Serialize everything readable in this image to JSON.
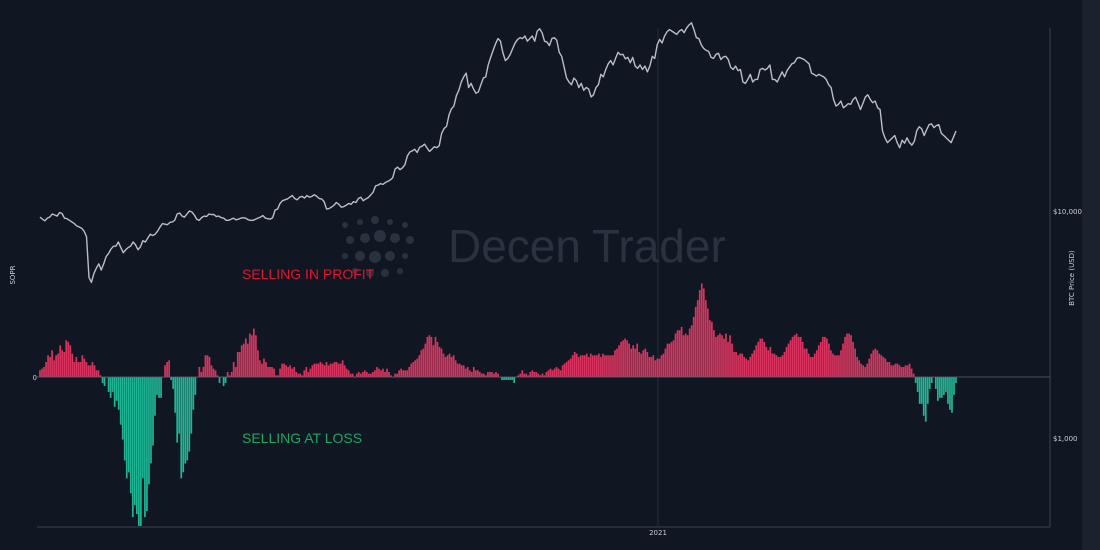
{
  "colors": {
    "background": "#111722",
    "profit_bar": "#d8345f",
    "loss_bar": "#1fb595",
    "price_line": "#b9bec7",
    "profit_text": "#e8102a",
    "loss_text": "#17a862",
    "watermark": "#2a3240",
    "axis_text": "#c9ced6",
    "zero_line": "#5c6370"
  },
  "watermark": {
    "text_part1": "Decen",
    "text_part2": "Trader",
    "logo": "dot-grid-logo"
  },
  "annotations": {
    "profit": "SELLING IN PROFIT",
    "loss": "SELLING AT LOSS"
  },
  "chart_data": {
    "type": "bar",
    "title": "",
    "xlabel": "",
    "ylabel": "SOPR",
    "y2label": "BTC Price (USD)",
    "x_ticks": [
      "2021"
    ],
    "y_ticks": [
      "0"
    ],
    "y2_ticks": [
      "$10,000",
      "$1,000"
    ],
    "y2_scale": "log",
    "grid": false,
    "series": [
      {
        "name": "SOPR",
        "chart_type": "bar",
        "values": [
          0.04,
          0.05,
          0.06,
          0.09,
          0.13,
          0.12,
          0.16,
          0.1,
          0.13,
          0.14,
          0.19,
          0.16,
          0.15,
          0.22,
          0.21,
          0.19,
          0.14,
          0.09,
          0.12,
          0.09,
          0.09,
          0.13,
          0.11,
          0.09,
          0.07,
          0.07,
          0.09,
          0.07,
          0.04,
          0.04,
          0.01,
          -0.02,
          -0.03,
          0.0,
          -0.05,
          -0.07,
          -0.05,
          -0.1,
          -0.08,
          -0.11,
          -0.16,
          -0.21,
          -0.28,
          -0.34,
          -0.32,
          -0.39,
          -0.47,
          -0.43,
          -0.46,
          -0.5,
          -0.5,
          -0.34,
          -0.47,
          -0.45,
          -0.36,
          -0.29,
          -0.23,
          -0.13,
          -0.06,
          -0.07,
          -0.07,
          0.0,
          0.07,
          0.09,
          0.1,
          -0.01,
          -0.04,
          -0.12,
          -0.22,
          -0.19,
          -0.34,
          -0.32,
          -0.29,
          -0.28,
          -0.25,
          -0.19,
          -0.11,
          -0.06,
          0.0,
          0.06,
          0.03,
          0.06,
          0.13,
          0.13,
          0.12,
          0.07,
          0.05,
          0.04,
          0.01,
          -0.02,
          -0.0,
          -0.03,
          -0.02,
          0.03,
          0.01,
          0.03,
          0.09,
          0.06,
          0.15,
          0.15,
          0.19,
          0.2,
          0.23,
          0.2,
          0.26,
          0.25,
          0.29,
          0.25,
          0.16,
          0.1,
          0.08,
          0.11,
          0.09,
          0.06,
          0.06,
          0.06,
          0.05,
          0.01,
          0.01,
          0.05,
          0.08,
          0.08,
          0.07,
          0.06,
          0.07,
          0.05,
          0.06,
          0.03,
          0.02,
          0.02,
          0.01,
          0.04,
          0.06,
          0.03,
          0.05,
          0.07,
          0.08,
          0.08,
          0.08,
          0.09,
          0.08,
          0.07,
          0.09,
          0.07,
          0.08,
          0.08,
          0.09,
          0.09,
          0.08,
          0.08,
          0.1,
          0.07,
          0.05,
          0.04,
          0.02,
          0.02,
          -0.0,
          0.02,
          0.03,
          0.02,
          0.03,
          0.04,
          0.03,
          0.02,
          0.02,
          0.03,
          0.04,
          0.06,
          0.05,
          0.04,
          0.05,
          0.03,
          0.05,
          0.03,
          0.01,
          0.0,
          0.02,
          0.02,
          0.04,
          0.05,
          0.04,
          0.04,
          0.04,
          0.06,
          0.08,
          0.09,
          0.1,
          0.11,
          0.13,
          0.16,
          0.17,
          0.2,
          0.24,
          0.25,
          0.24,
          0.19,
          0.24,
          0.21,
          0.18,
          0.17,
          0.14,
          0.12,
          0.13,
          0.14,
          0.12,
          0.13,
          0.1,
          0.08,
          0.08,
          0.07,
          0.07,
          0.05,
          0.06,
          0.04,
          0.03,
          0.06,
          0.04,
          0.04,
          0.03,
          0.02,
          0.02,
          0.01,
          0.03,
          0.03,
          0.03,
          0.02,
          0.03,
          0.02,
          -0.0,
          -0.01,
          -0.01,
          -0.01,
          -0.01,
          -0.01,
          -0.01,
          -0.02,
          0.0,
          0.01,
          0.02,
          0.04,
          0.02,
          0.02,
          0.01,
          0.03,
          0.04,
          0.03,
          0.03,
          0.02,
          0.01,
          0.02,
          0.01,
          0.03,
          0.04,
          0.05,
          0.04,
          0.05,
          0.06,
          0.05,
          0.04,
          0.07,
          0.08,
          0.09,
          0.1,
          0.11,
          0.13,
          0.15,
          0.14,
          0.12,
          0.13,
          0.13,
          0.13,
          0.14,
          0.12,
          0.14,
          0.13,
          0.13,
          0.13,
          0.14,
          0.12,
          0.14,
          0.13,
          0.13,
          0.13,
          0.13,
          0.13,
          0.16,
          0.17,
          0.19,
          0.21,
          0.22,
          0.23,
          0.22,
          0.2,
          0.17,
          0.19,
          0.17,
          0.2,
          0.15,
          0.14,
          0.16,
          0.17,
          0.15,
          0.12,
          0.12,
          0.13,
          0.1,
          0.11,
          0.11,
          0.13,
          0.14,
          0.17,
          0.2,
          0.2,
          0.21,
          0.22,
          0.26,
          0.28,
          0.28,
          0.3,
          0.25,
          0.26,
          0.25,
          0.29,
          0.31,
          0.36,
          0.42,
          0.46,
          0.52,
          0.56,
          0.53,
          0.46,
          0.41,
          0.34,
          0.33,
          0.28,
          0.24,
          0.25,
          0.26,
          0.25,
          0.23,
          0.26,
          0.21,
          0.25,
          0.2,
          0.15,
          0.15,
          0.13,
          0.14,
          0.14,
          0.12,
          0.11,
          0.1,
          0.12,
          0.14,
          0.16,
          0.19,
          0.21,
          0.23,
          0.23,
          0.21,
          0.18,
          0.16,
          0.18,
          0.14,
          0.14,
          0.13,
          0.12,
          0.12,
          0.13,
          0.15,
          0.18,
          0.2,
          0.22,
          0.24,
          0.25,
          0.26,
          0.24,
          0.24,
          0.21,
          0.17,
          0.17,
          0.14,
          0.12,
          0.12,
          0.14,
          0.16,
          0.19,
          0.21,
          0.24,
          0.24,
          0.23,
          0.2,
          0.16,
          0.14,
          0.13,
          0.13,
          0.13,
          0.16,
          0.2,
          0.24,
          0.26,
          0.26,
          0.25,
          0.21,
          0.17,
          0.12,
          0.1,
          0.08,
          0.07,
          0.06,
          0.08,
          0.11,
          0.14,
          0.16,
          0.17,
          0.16,
          0.14,
          0.13,
          0.12,
          0.11,
          0.09,
          0.09,
          0.07,
          0.07,
          0.08,
          0.08,
          0.07,
          0.06,
          0.06,
          0.07,
          0.07,
          0.08,
          0.05,
          0.02,
          -0.02,
          -0.05,
          -0.09,
          -0.09,
          -0.13,
          -0.15,
          -0.09,
          -0.04,
          -0.02,
          -0.0,
          -0.04,
          -0.08,
          -0.07,
          -0.07,
          -0.06,
          -0.05,
          -0.09,
          -0.11,
          -0.12,
          -0.06,
          -0.02
        ]
      },
      {
        "name": "BTC Price (USD)",
        "chart_type": "line",
        "values": [
          9400,
          9200,
          9050,
          9300,
          9400,
          9700,
          9600,
          9500,
          9850,
          9750,
          9300,
          9250,
          9100,
          8950,
          8800,
          8600,
          8500,
          8400,
          8150,
          7700,
          5100,
          4850,
          5300,
          5600,
          5850,
          5500,
          5850,
          6300,
          6500,
          6800,
          7000,
          7000,
          7300,
          6900,
          6550,
          6750,
          6900,
          7000,
          7300,
          7100,
          6750,
          6950,
          7400,
          7300,
          7600,
          7900,
          7800,
          7900,
          8150,
          8500,
          8800,
          8750,
          8700,
          8900,
          8950,
          9100,
          9700,
          9800,
          9500,
          9400,
          9700,
          10000,
          9900,
          9600,
          9200,
          9100,
          9350,
          9500,
          9450,
          9700,
          9650,
          9650,
          9450,
          9500,
          9350,
          9300,
          9100,
          9100,
          9200,
          9300,
          9150,
          9200,
          9300,
          9350,
          9300,
          9150,
          9100,
          9100,
          9200,
          9300,
          9400,
          9550,
          9300,
          9250,
          9200,
          9350,
          10100,
          10200,
          10800,
          11100,
          11200,
          11300,
          11500,
          11700,
          11350,
          11200,
          11500,
          11600,
          11400,
          11700,
          11500,
          11600,
          11800,
          11600,
          11350,
          11300,
          11000,
          10200,
          10250,
          10400,
          10600,
          10900,
          10700,
          10400,
          10450,
          10600,
          10800,
          10700,
          11000,
          10900,
          11350,
          11500,
          11100,
          11300,
          11450,
          11750,
          12100,
          12900,
          13000,
          13200,
          13100,
          13350,
          13500,
          13700,
          14000,
          15300,
          15600,
          15200,
          15500,
          16000,
          17500,
          18200,
          18400,
          18700,
          18100,
          19100,
          19300,
          19700,
          19000,
          18300,
          18700,
          19200,
          19000,
          19400,
          22000,
          23100,
          23600,
          26500,
          28200,
          29000,
          32200,
          34000,
          37000,
          39000,
          40500,
          35000,
          36500,
          34500,
          33000,
          33500,
          36000,
          38500,
          39000,
          44000,
          47500,
          51000,
          54500,
          57500,
          56000,
          49800,
          46000,
          47000,
          49000,
          52000,
          55000,
          57000,
          58000,
          57500,
          59000,
          56000,
          57500,
          59000,
          56000,
          62000,
          63500,
          61000,
          56000,
          55500,
          53500,
          57500,
          58000,
          56500,
          50000,
          48000,
          43000,
          38500,
          37000,
          36000,
          38500,
          37500,
          35000,
          36500,
          34000,
          35000,
          34500,
          31800,
          32500,
          35000,
          36000,
          40000,
          39000,
          42000,
          44500,
          46000,
          44000,
          47000,
          50000,
          48800,
          49000,
          46800,
          47500,
          45000,
          47500,
          43500,
          42500,
          44000,
          42000,
          43500,
          41000,
          43500,
          48000,
          47000,
          54000,
          57000,
          55000,
          59000,
          61500,
          63000,
          62000,
          61000,
          60000,
          62000,
          63000,
          61000,
          64000,
          66000,
          67500,
          63000,
          58000,
          57500,
          54000,
          52000,
          51000,
          50500,
          47500,
          47000,
          49000,
          49500,
          46500,
          47700,
          48000,
          46500,
          43000,
          42000,
          43500,
          41500,
          42000,
          37000,
          36500,
          38000,
          40000,
          37000,
          38000,
          38000,
          42000,
          42500,
          41800,
          42500,
          44000,
          38000,
          38000,
          37000,
          39000,
          41000,
          39000,
          41500,
          43000,
          44500,
          45000,
          47000,
          47500,
          47000,
          46500,
          45500,
          44500,
          40500,
          40000,
          39300,
          40000,
          39500,
          39000,
          38000,
          36000,
          35000,
          31000,
          29000,
          29500,
          30500,
          28500,
          29000,
          29700,
          29500,
          31000,
          31700,
          29900,
          28000,
          29800,
          31800,
          32500,
          31000,
          30000,
          30500,
          28500,
          28000,
          22500,
          21000,
          20000,
          20500,
          21000,
          21500,
          20000,
          19000,
          20500,
          19900,
          21000,
          20000,
          19500,
          20300,
          22600,
          23500,
          23000,
          21500,
          22800,
          24000,
          24200,
          23300,
          23800,
          24000,
          22000,
          21500,
          21000,
          20500,
          20000,
          21200,
          22500
        ]
      }
    ]
  }
}
